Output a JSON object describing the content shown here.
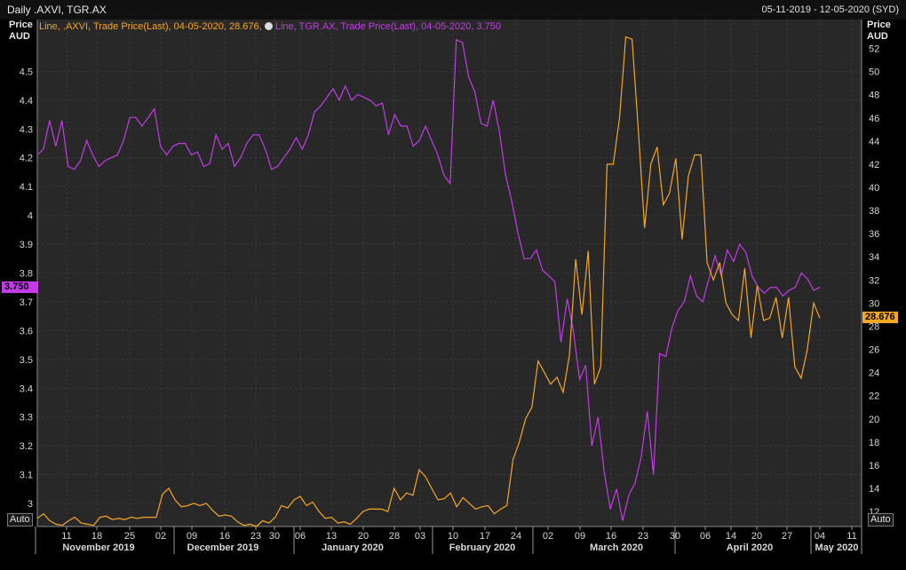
{
  "header": {
    "title": "Daily .AXVI, TGR.AX",
    "date_range": "05-11-2019 - 12-05-2020 (SYD)",
    "left_axis_title": "Price",
    "left_axis_unit": "AUD",
    "right_axis_title": "Price",
    "right_axis_unit": "AUD",
    "auto_left": "Auto",
    "auto_right": "Auto"
  },
  "legend": {
    "axvi": "Line, .AXVI, Trade Price(Last), 04-05-2020, 28.676,",
    "tgr": "Line, TGR.AX, Trade Price(Last), 04-05-2020, 3.750",
    "axvi_color": "#f5a623",
    "tgr_color": "#c43be8"
  },
  "tags": {
    "tgr_last": "3.750",
    "axvi_last": "28.676"
  },
  "chart_data": {
    "type": "line",
    "x_day_ticks": [
      "11",
      "18",
      "25",
      "02",
      "09",
      "16",
      "23",
      "30",
      "06",
      "13",
      "20",
      "28",
      "03",
      "10",
      "17",
      "24",
      "02",
      "09",
      "16",
      "23",
      "30",
      "06",
      "14",
      "20",
      "27",
      "04",
      "11"
    ],
    "x_month_labels": [
      "November 2019",
      "December 2019",
      "January 2020",
      "February 2020",
      "March 2020",
      "April 2020",
      "May 2020"
    ],
    "y_left": {
      "label": "Price AUD",
      "range": [
        2.92,
        4.68
      ],
      "ticks": [
        3,
        3.1,
        3.2,
        3.3,
        3.4,
        3.5,
        3.6,
        3.7,
        3.8,
        3.9,
        4,
        4.1,
        4.2,
        4.3,
        4.4,
        4.5
      ]
    },
    "y_right": {
      "label": "Price AUD",
      "range": [
        10.7,
        54.5
      ],
      "ticks": [
        12,
        14,
        16,
        18,
        20,
        22,
        24,
        26,
        28,
        30,
        32,
        34,
        36,
        38,
        40,
        42,
        44,
        46,
        48,
        50,
        52
      ]
    },
    "series": [
      {
        "name": "TGR.AX",
        "axis": "left",
        "color": "#c43be8",
        "values": [
          4.21,
          4.23,
          4.33,
          4.24,
          4.33,
          4.17,
          4.16,
          4.19,
          4.26,
          4.21,
          4.17,
          4.19,
          4.2,
          4.21,
          4.26,
          4.34,
          4.34,
          4.31,
          4.34,
          4.37,
          4.24,
          4.21,
          4.24,
          4.25,
          4.25,
          4.21,
          4.22,
          4.17,
          4.18,
          4.28,
          4.23,
          4.25,
          4.17,
          4.2,
          4.25,
          4.28,
          4.28,
          4.23,
          4.16,
          4.17,
          4.2,
          4.23,
          4.27,
          4.23,
          4.28,
          4.36,
          4.38,
          4.41,
          4.44,
          4.4,
          4.45,
          4.4,
          4.42,
          4.41,
          4.4,
          4.38,
          4.39,
          4.28,
          4.35,
          4.31,
          4.31,
          4.24,
          4.26,
          4.31,
          4.26,
          4.21,
          4.14,
          4.11,
          4.61,
          4.6,
          4.48,
          4.43,
          4.32,
          4.31,
          4.4,
          4.29,
          4.14,
          4.05,
          3.94,
          3.85,
          3.85,
          3.88,
          3.81,
          3.79,
          3.77,
          3.56,
          3.71,
          3.6,
          3.43,
          3.48,
          3.2,
          3.3,
          3.11,
          2.98,
          3.05,
          2.94,
          3.03,
          3.07,
          3.16,
          3.32,
          3.1,
          3.52,
          3.51,
          3.61,
          3.67,
          3.7,
          3.79,
          3.72,
          3.7,
          3.78,
          3.86,
          3.79,
          3.88,
          3.84,
          3.9,
          3.87,
          3.79,
          3.75,
          3.73,
          3.75,
          3.75,
          3.72,
          3.74,
          3.75,
          3.8,
          3.78,
          3.74,
          3.75
        ]
      },
      {
        "name": ".AXVI",
        "axis": "right",
        "color": "#f5a623",
        "values": [
          11.4,
          11.8,
          11.2,
          10.9,
          10.8,
          11.2,
          11.5,
          11.0,
          10.9,
          10.8,
          11.5,
          11.6,
          11.3,
          11.4,
          11.3,
          11.5,
          11.4,
          11.5,
          11.5,
          11.5,
          13.5,
          14.0,
          13.0,
          12.4,
          12.5,
          12.7,
          12.5,
          12.7,
          12.1,
          11.6,
          11.7,
          11.6,
          11.1,
          10.8,
          10.9,
          10.7,
          11.2,
          11.0,
          11.5,
          12.5,
          12.3,
          13.0,
          13.3,
          12.5,
          12.8,
          12.0,
          11.4,
          11.5,
          11.0,
          11.1,
          10.9,
          11.4,
          12.0,
          12.2,
          12.2,
          12.2,
          12.0,
          14.0,
          13.0,
          13.6,
          13.4,
          15.6,
          15.0,
          14.0,
          13.0,
          13.1,
          13.6,
          12.4,
          13.2,
          12.7,
          12.2,
          12.4,
          12.5,
          11.8,
          12.2,
          12.5,
          16.5,
          18.0,
          20.0,
          21.0,
          25.0,
          24.0,
          23.0,
          23.6,
          22.3,
          25.5,
          33.8,
          29.0,
          34.5,
          23.0,
          24.5,
          42.0,
          42.0,
          46.0,
          53.0,
          52.8,
          45.0,
          36.5,
          42.0,
          43.5,
          38.5,
          39.5,
          42.5,
          35.5,
          41.0,
          42.8,
          42.8,
          33.5,
          32.0,
          33.5,
          30.0,
          29.0,
          28.5,
          33.0,
          27.0,
          31.5,
          28.5,
          28.7,
          30.5,
          27.0,
          30.5,
          24.5,
          23.5,
          26.0,
          30.0,
          28.7
        ]
      }
    ]
  }
}
